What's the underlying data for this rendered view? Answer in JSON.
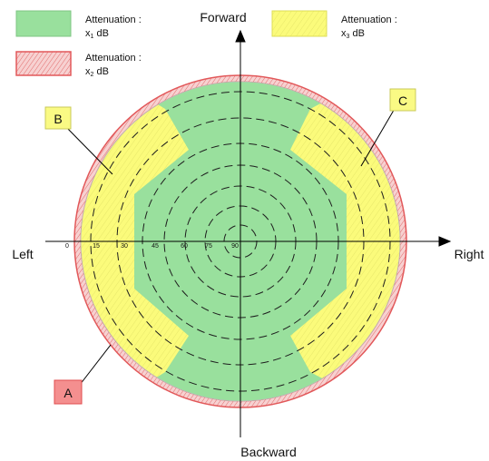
{
  "axes": {
    "forward": "Forward",
    "backward": "Backward",
    "left": "Left",
    "right": "Right"
  },
  "legend": {
    "items": [
      {
        "line1": "Attenuation :",
        "line2_prefix": "x",
        "line2_sub": "1",
        "line2_suffix": " dB",
        "fill": "#99e09d",
        "stroke": "#7fc483"
      },
      {
        "line1": "Attenuation :",
        "line2_prefix": "x",
        "line2_sub": "2",
        "line2_suffix": " dB",
        "fill": "#f8d6d6",
        "stroke": "#e2585a"
      },
      {
        "line1": "Attenuation :",
        "line2_prefix": "x",
        "line2_sub": "3",
        "line2_suffix": " dB",
        "fill": "#fbfb7b",
        "stroke": "#dede56"
      }
    ]
  },
  "angle_ticks": [
    "0",
    "15",
    "30",
    "45",
    "60",
    "75",
    "90"
  ],
  "callouts": {
    "A": "A",
    "B": "B",
    "C": "C"
  },
  "colors": {
    "green_zone": "#99e09d",
    "yellow_zone": "#fbfb7b",
    "outer_ring_fill": "#f7d1d1",
    "outer_ring_stroke": "#e2585a",
    "A_box_fill": "#f48f8f",
    "A_box_stroke": "#e14d4f",
    "B_box_fill": "#fafa84",
    "B_box_stroke": "#c9c95a",
    "C_box_fill": "#fafa84",
    "C_box_stroke": "#c9c95a",
    "axis_color": "#000000",
    "dash_color": "#1e1e1e",
    "hatch_yellow": "#e7e76a",
    "hatch_red": "#e16b6b"
  }
}
